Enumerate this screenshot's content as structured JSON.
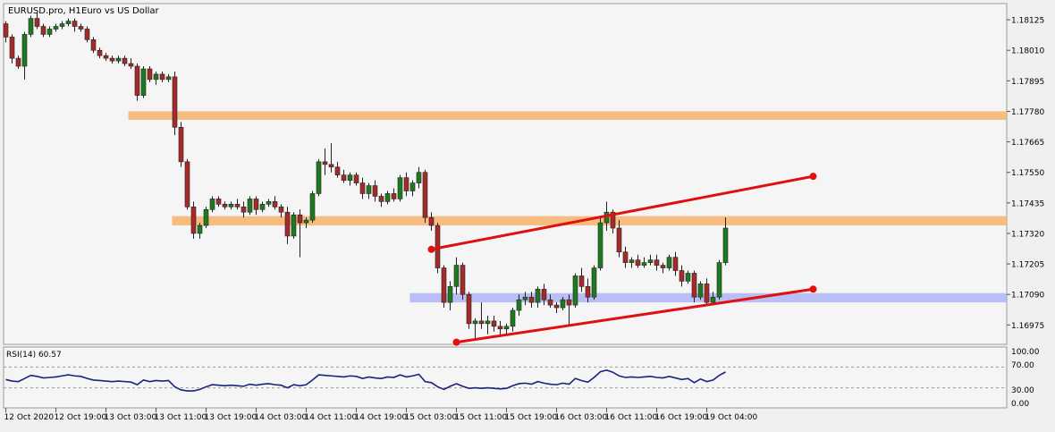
{
  "header": {
    "symbol_label": "EURUSD.pro, H1:",
    "description": "Euro vs US Dollar"
  },
  "rsi_panel": {
    "label": "RSI(14) 60.57",
    "levels": [
      "100.00",
      "70.00",
      "30.00",
      "0.00"
    ]
  },
  "colors": {
    "background": "#f5f5f5",
    "bull_candle": "#1f7a1f",
    "bear_candle": "#a52a2a",
    "resistance_zone": "#f6b26b",
    "support_zone": "#aeb4f5",
    "trendline": "#e01010",
    "rsi_line": "#1a237e"
  },
  "chart_data": [
    {
      "type": "candlestick",
      "title": "EURUSD.pro, H1:  Euro vs US Dollar",
      "timeframe": "H1",
      "ylim": [
        1.16902,
        1.18186
      ],
      "y_ticks": [
        "1.18125",
        "1.18010",
        "1.17895",
        "1.17780",
        "1.17665",
        "1.17550",
        "1.17435",
        "1.17320",
        "1.17205",
        "1.17090",
        "1.16975"
      ],
      "x_ticks": [
        {
          "bar": 0,
          "label": "12 Oct 2020"
        },
        {
          "bar": 8,
          "label": "12 Oct 19:00"
        },
        {
          "bar": 16,
          "label": "13 Oct 03:00"
        },
        {
          "bar": 24,
          "label": "13 Oct 11:00"
        },
        {
          "bar": 32,
          "label": "13 Oct 19:00"
        },
        {
          "bar": 40,
          "label": "14 Oct 03:00"
        },
        {
          "bar": 48,
          "label": "14 Oct 11:00"
        },
        {
          "bar": 56,
          "label": "14 Oct 19:00"
        },
        {
          "bar": 64,
          "label": "15 Oct 03:00"
        },
        {
          "bar": 72,
          "label": "15 Oct 11:00"
        },
        {
          "bar": 80,
          "label": "15 Oct 19:00"
        },
        {
          "bar": 88,
          "label": "16 Oct 03:00"
        },
        {
          "bar": 96,
          "label": "16 Oct 11:00"
        },
        {
          "bar": 104,
          "label": "16 Oct 19:00"
        },
        {
          "bar": 112,
          "label": "19 Oct 04:00"
        }
      ],
      "candles": [
        [
          1.1811,
          1.1812,
          1.1804,
          1.1806
        ],
        [
          1.1806,
          1.1807,
          1.1796,
          1.1798
        ],
        [
          1.1798,
          1.1799,
          1.1794,
          1.1795
        ],
        [
          1.1795,
          1.1808,
          1.179,
          1.1807
        ],
        [
          1.1807,
          1.1814,
          1.1806,
          1.1813
        ],
        [
          1.1813,
          1.1815,
          1.1809,
          1.181
        ],
        [
          1.181,
          1.1811,
          1.1806,
          1.1807
        ],
        [
          1.1807,
          1.181,
          1.1806,
          1.1809
        ],
        [
          1.1809,
          1.1811,
          1.1808,
          1.181
        ],
        [
          1.181,
          1.1812,
          1.1809,
          1.1811
        ],
        [
          1.1811,
          1.1813,
          1.181,
          1.1812
        ],
        [
          1.1812,
          1.1813,
          1.1808,
          1.181
        ],
        [
          1.181,
          1.1811,
          1.1808,
          1.1809
        ],
        [
          1.1809,
          1.181,
          1.1804,
          1.1805
        ],
        [
          1.1805,
          1.1806,
          1.18,
          1.1801
        ],
        [
          1.1801,
          1.1802,
          1.1798,
          1.1799
        ],
        [
          1.1799,
          1.18,
          1.1797,
          1.1798
        ],
        [
          1.1798,
          1.1799,
          1.1796,
          1.1797
        ],
        [
          1.1797,
          1.1799,
          1.1796,
          1.1798
        ],
        [
          1.1798,
          1.1799,
          1.1795,
          1.1796
        ],
        [
          1.1796,
          1.1798,
          1.1794,
          1.1795
        ],
        [
          1.1795,
          1.1796,
          1.1782,
          1.1784
        ],
        [
          1.1784,
          1.1795,
          1.1783,
          1.1794
        ],
        [
          1.1794,
          1.1795,
          1.1789,
          1.179
        ],
        [
          1.179,
          1.1793,
          1.1788,
          1.1792
        ],
        [
          1.1792,
          1.1793,
          1.1789,
          1.179
        ],
        [
          1.179,
          1.1792,
          1.1789,
          1.1791
        ],
        [
          1.1791,
          1.1793,
          1.1769,
          1.1772
        ],
        [
          1.1772,
          1.1774,
          1.1757,
          1.1759
        ],
        [
          1.1759,
          1.176,
          1.1741,
          1.1742
        ],
        [
          1.1742,
          1.1744,
          1.173,
          1.1732
        ],
        [
          1.1732,
          1.1736,
          1.173,
          1.1735
        ],
        [
          1.1735,
          1.1742,
          1.1734,
          1.1741
        ],
        [
          1.1741,
          1.1746,
          1.174,
          1.1745
        ],
        [
          1.1745,
          1.1746,
          1.1742,
          1.1743
        ],
        [
          1.1743,
          1.1744,
          1.1741,
          1.1742
        ],
        [
          1.1742,
          1.1744,
          1.1741,
          1.1743
        ],
        [
          1.1743,
          1.1745,
          1.1741,
          1.1742
        ],
        [
          1.1742,
          1.1744,
          1.1738,
          1.174
        ],
        [
          1.174,
          1.1746,
          1.1739,
          1.1745
        ],
        [
          1.1745,
          1.1746,
          1.1739,
          1.1741
        ],
        [
          1.1741,
          1.1744,
          1.174,
          1.1743
        ],
        [
          1.1743,
          1.1745,
          1.1742,
          1.1744
        ],
        [
          1.1744,
          1.1746,
          1.1741,
          1.1742
        ],
        [
          1.1742,
          1.1743,
          1.1738,
          1.174
        ],
        [
          1.174,
          1.1742,
          1.1728,
          1.1731
        ],
        [
          1.1731,
          1.174,
          1.173,
          1.1739
        ],
        [
          1.1739,
          1.1741,
          1.1723,
          1.1736
        ],
        [
          1.1736,
          1.1738,
          1.1734,
          1.1737
        ],
        [
          1.1737,
          1.1748,
          1.1736,
          1.1747
        ],
        [
          1.1747,
          1.176,
          1.1746,
          1.1759
        ],
        [
          1.1759,
          1.1764,
          1.1754,
          1.1758
        ],
        [
          1.1758,
          1.1766,
          1.1755,
          1.1757
        ],
        [
          1.1757,
          1.1759,
          1.1753,
          1.1754
        ],
        [
          1.1754,
          1.1756,
          1.1751,
          1.1752
        ],
        [
          1.1752,
          1.1755,
          1.175,
          1.1754
        ],
        [
          1.1754,
          1.1755,
          1.175,
          1.1751
        ],
        [
          1.1751,
          1.1753,
          1.1745,
          1.1747
        ],
        [
          1.1747,
          1.1751,
          1.1745,
          1.175
        ],
        [
          1.175,
          1.1752,
          1.1744,
          1.1746
        ],
        [
          1.1746,
          1.1747,
          1.1742,
          1.1744
        ],
        [
          1.1744,
          1.1748,
          1.1743,
          1.1747
        ],
        [
          1.1747,
          1.1749,
          1.1744,
          1.1745
        ],
        [
          1.1745,
          1.1754,
          1.1744,
          1.1753
        ],
        [
          1.1753,
          1.1755,
          1.1746,
          1.1748
        ],
        [
          1.1748,
          1.1752,
          1.1746,
          1.1751
        ],
        [
          1.1751,
          1.1757,
          1.1749,
          1.1755
        ],
        [
          1.1755,
          1.1756,
          1.1736,
          1.1738
        ],
        [
          1.1738,
          1.174,
          1.1733,
          1.1735
        ],
        [
          1.1735,
          1.1736,
          1.1717,
          1.1719
        ],
        [
          1.1719,
          1.172,
          1.1704,
          1.1706
        ],
        [
          1.1706,
          1.1714,
          1.1703,
          1.1712
        ],
        [
          1.1712,
          1.1723,
          1.1709,
          1.172
        ],
        [
          1.172,
          1.1721,
          1.1707,
          1.1709
        ],
        [
          1.1709,
          1.171,
          1.1696,
          1.1698
        ],
        [
          1.1698,
          1.17,
          1.1692,
          1.1699
        ],
        [
          1.1699,
          1.1706,
          1.1696,
          1.1698
        ],
        [
          1.1698,
          1.1701,
          1.1694,
          1.1699
        ],
        [
          1.1699,
          1.1701,
          1.1695,
          1.1697
        ],
        [
          1.1697,
          1.1699,
          1.1693,
          1.1696
        ],
        [
          1.1696,
          1.1698,
          1.1694,
          1.1697
        ],
        [
          1.1697,
          1.1704,
          1.1695,
          1.1703
        ],
        [
          1.1703,
          1.1709,
          1.1701,
          1.1707
        ],
        [
          1.1707,
          1.171,
          1.1705,
          1.1708
        ],
        [
          1.1708,
          1.171,
          1.1704,
          1.1706
        ],
        [
          1.1706,
          1.1712,
          1.1704,
          1.1711
        ],
        [
          1.1711,
          1.1713,
          1.1705,
          1.1707
        ],
        [
          1.1707,
          1.1709,
          1.1704,
          1.1705
        ],
        [
          1.1705,
          1.1706,
          1.1702,
          1.1704
        ],
        [
          1.1704,
          1.1708,
          1.1703,
          1.1707
        ],
        [
          1.1707,
          1.1709,
          1.1697,
          1.1705
        ],
        [
          1.1705,
          1.1717,
          1.1704,
          1.1716
        ],
        [
          1.1716,
          1.1719,
          1.171,
          1.1712
        ],
        [
          1.1712,
          1.1715,
          1.1706,
          1.1708
        ],
        [
          1.1708,
          1.172,
          1.1707,
          1.1719
        ],
        [
          1.1719,
          1.1738,
          1.1718,
          1.1736
        ],
        [
          1.1736,
          1.1744,
          1.1733,
          1.174
        ],
        [
          1.174,
          1.1741,
          1.1732,
          1.1734
        ],
        [
          1.1734,
          1.1737,
          1.1723,
          1.1725
        ],
        [
          1.1725,
          1.1727,
          1.1719,
          1.1721
        ],
        [
          1.1721,
          1.1723,
          1.1719,
          1.1722
        ],
        [
          1.1722,
          1.1724,
          1.1719,
          1.172
        ],
        [
          1.172,
          1.1723,
          1.1719,
          1.1721
        ],
        [
          1.1721,
          1.1724,
          1.172,
          1.1722
        ],
        [
          1.1722,
          1.1724,
          1.1718,
          1.172
        ],
        [
          1.172,
          1.1721,
          1.1717,
          1.1719
        ],
        [
          1.1719,
          1.1724,
          1.1718,
          1.1723
        ],
        [
          1.1723,
          1.1725,
          1.1716,
          1.1718
        ],
        [
          1.1718,
          1.172,
          1.1712,
          1.1714
        ],
        [
          1.1714,
          1.1718,
          1.1713,
          1.1717
        ],
        [
          1.1717,
          1.1718,
          1.1706,
          1.1708
        ],
        [
          1.1708,
          1.1714,
          1.1707,
          1.1713
        ],
        [
          1.1713,
          1.1715,
          1.1705,
          1.1706
        ],
        [
          1.1706,
          1.171,
          1.1705,
          1.1708
        ],
        [
          1.1708,
          1.1722,
          1.1707,
          1.1721
        ],
        [
          1.1721,
          1.1738,
          1.172,
          1.1734
        ]
      ],
      "zones": [
        {
          "name": "resistance-upper",
          "y_top": 1.1778,
          "y_bottom": 1.17748,
          "start_bar": 20,
          "end": "right",
          "color_key": "resistance_zone"
        },
        {
          "name": "resistance-lower",
          "y_top": 1.17385,
          "y_bottom": 1.1735,
          "start_bar": 27,
          "end": "right",
          "color_key": "resistance_zone"
        },
        {
          "name": "support-zone",
          "y_top": 1.17095,
          "y_bottom": 1.1706,
          "start_bar": 65,
          "end": "right",
          "color_key": "support_zone"
        }
      ],
      "trendlines": [
        {
          "name": "channel-upper",
          "x1_bar": 68,
          "y1": 1.1726,
          "x2_bar": 129,
          "y2": 1.17535
        },
        {
          "name": "channel-lower",
          "x1_bar": 72,
          "y1": 1.1691,
          "x2_bar": 129,
          "y2": 1.1711
        }
      ]
    },
    {
      "type": "line",
      "title": "RSI(14) 60.57",
      "ylim": [
        0,
        100
      ],
      "levels": [
        70,
        30
      ],
      "x": "same bars as price chart",
      "values": [
        46.0,
        43.0,
        42.0,
        48.0,
        54.0,
        52.0,
        49.0,
        50.0,
        51.0,
        53.0,
        55.0,
        53.0,
        52.0,
        48.0,
        45.0,
        44.0,
        43.0,
        42.0,
        43.0,
        42.0,
        41.0,
        36.0,
        45.0,
        42.0,
        44.0,
        43.0,
        44.0,
        32.0,
        26.0,
        24.0,
        24.0,
        27.0,
        32.0,
        36.0,
        35.0,
        34.0,
        35.0,
        34.0,
        33.0,
        37.0,
        35.0,
        37.0,
        38.0,
        36.0,
        35.0,
        30.0,
        36.0,
        34.0,
        36.0,
        45.0,
        55.0,
        54.0,
        53.0,
        52.0,
        51.0,
        53.0,
        52.0,
        48.0,
        51.0,
        49.0,
        48.0,
        51.0,
        50.0,
        55.0,
        51.0,
        53.0,
        56.0,
        42.0,
        40.0,
        32.0,
        27.0,
        33.0,
        38.0,
        33.0,
        29.0,
        30.0,
        29.0,
        30.0,
        29.0,
        28.0,
        29.0,
        34.0,
        38.0,
        39.0,
        37.0,
        42.0,
        39.0,
        37.0,
        36.0,
        39.0,
        37.0,
        48.0,
        44.0,
        41.0,
        50.0,
        61.0,
        64.0,
        60.0,
        53.0,
        50.0,
        51.0,
        50.0,
        51.0,
        52.0,
        50.0,
        49.0,
        52.0,
        49.0,
        46.0,
        48.0,
        40.0,
        47.0,
        42.0,
        45.0,
        54.0,
        60.57
      ]
    }
  ]
}
